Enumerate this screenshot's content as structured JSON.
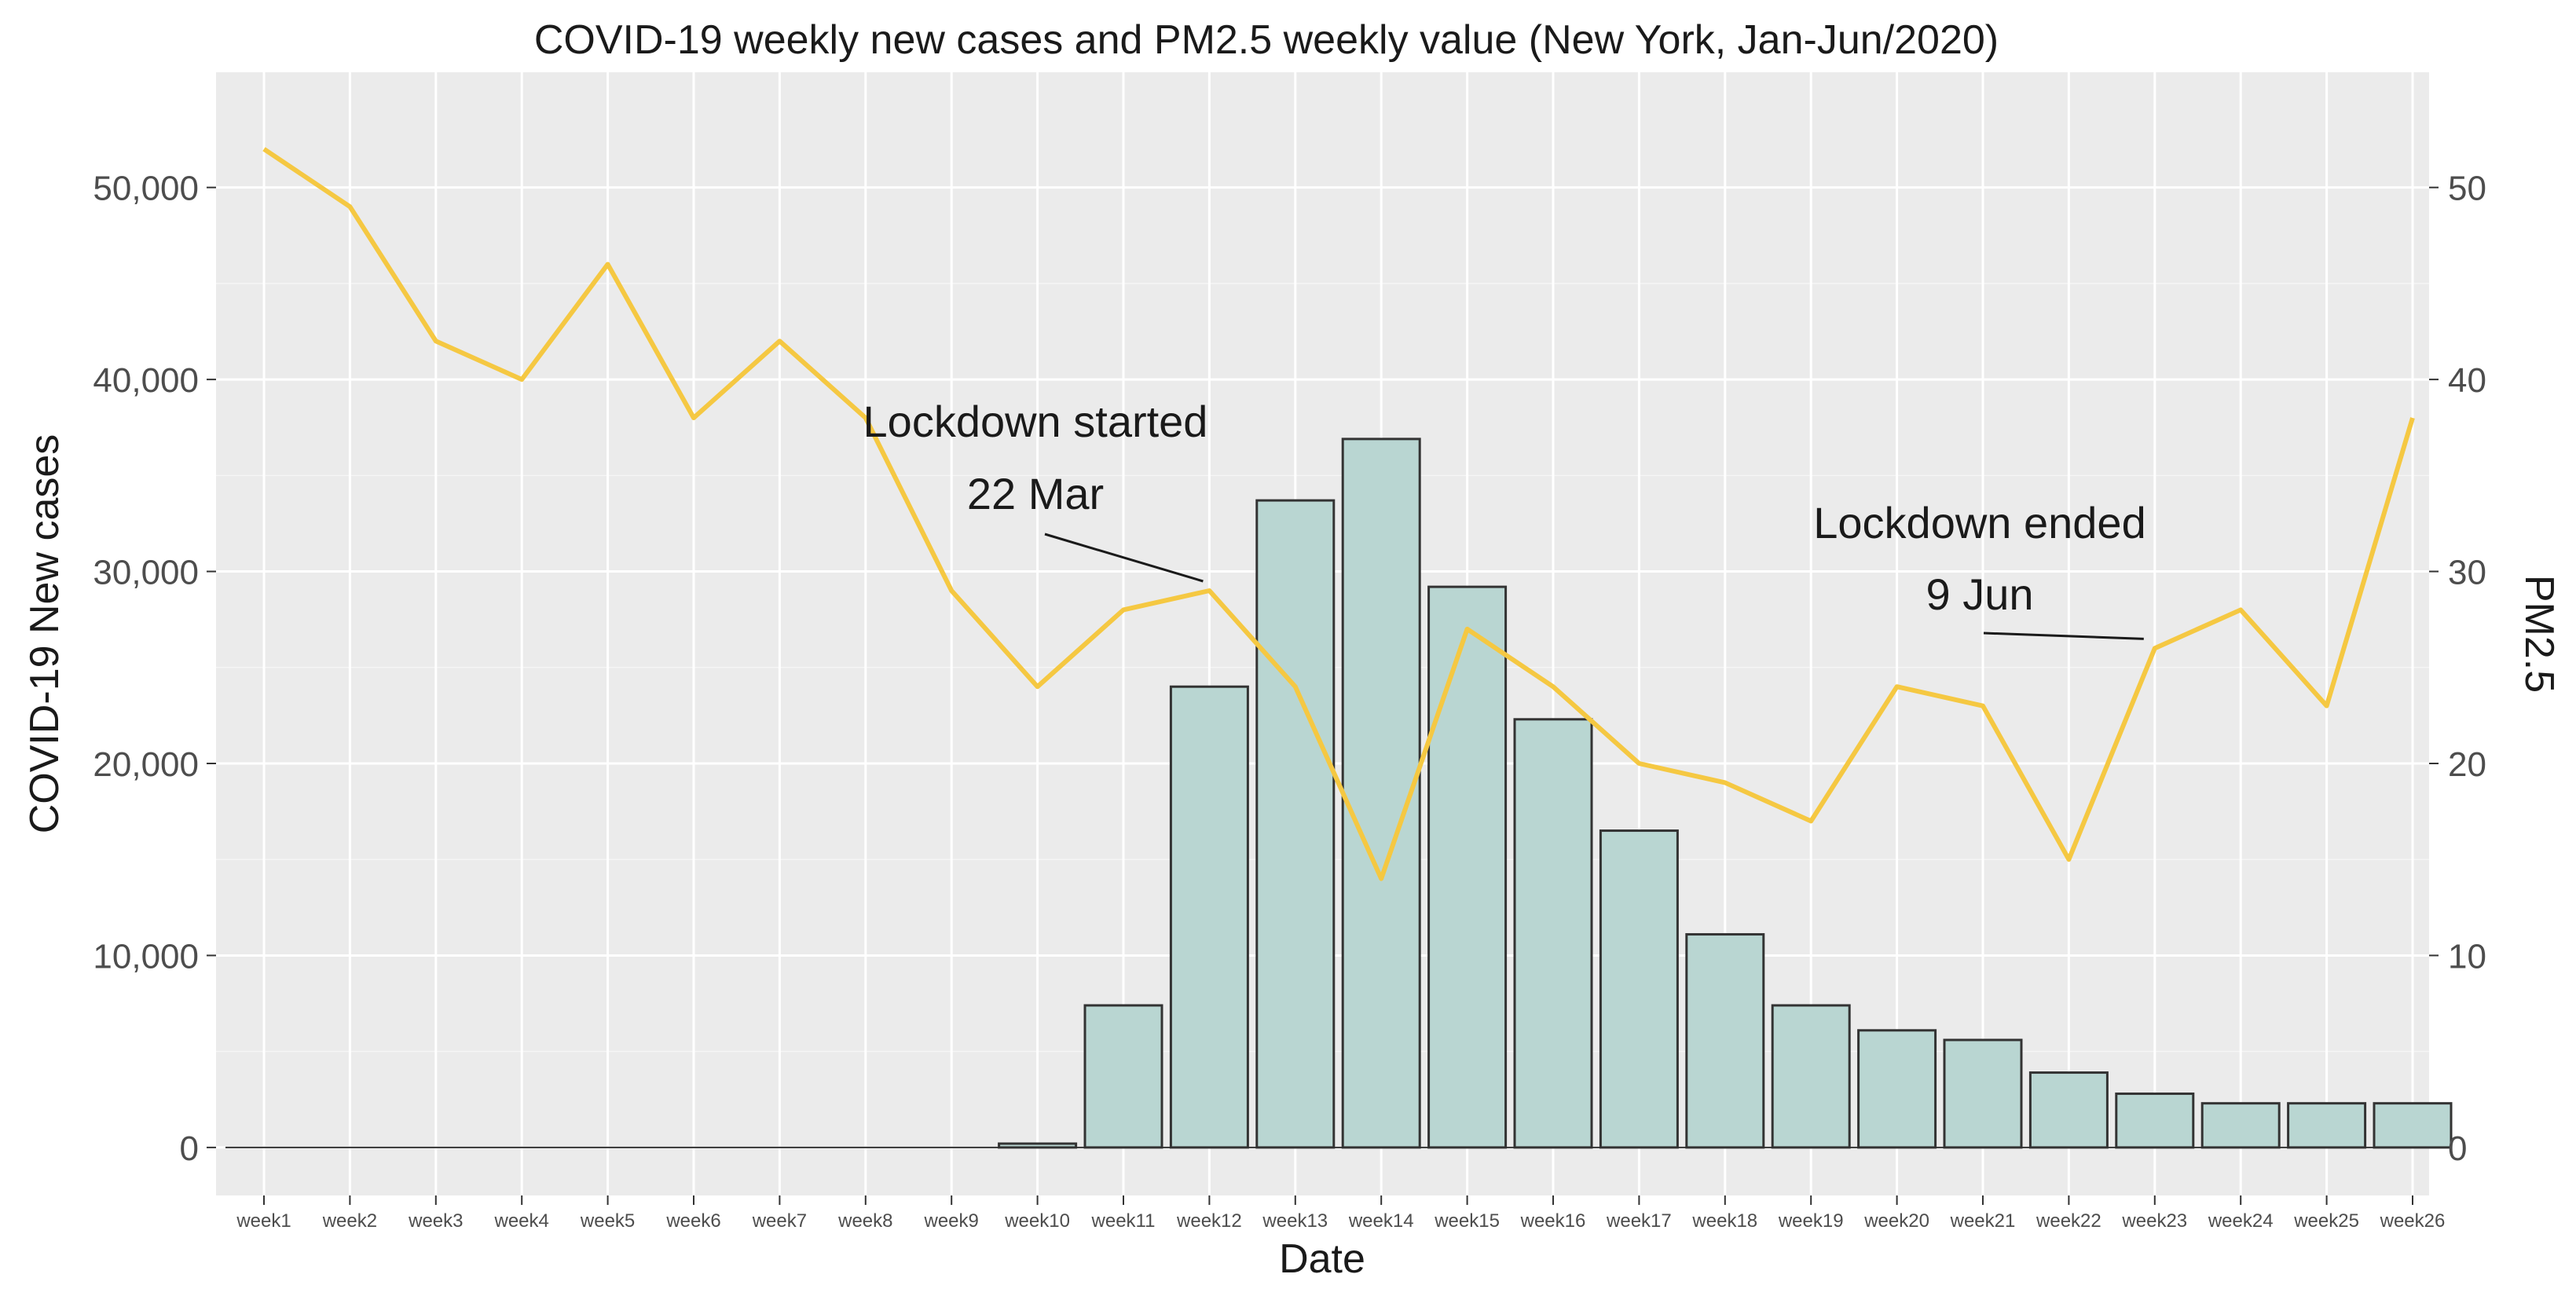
{
  "chart_data": {
    "type": "bar",
    "title": "COVID-19 weekly new cases and PM2.5 weekly value (New York, Jan-Jun/2020)",
    "xlabel": "Date",
    "ylabel": "COVID-19 New cases",
    "ylabel_right": "PM2.5",
    "ylim": [
      -2500,
      56000
    ],
    "ylim_right": [
      -2.5,
      56
    ],
    "grid": true,
    "categories": [
      "week1",
      "week2",
      "week3",
      "week4",
      "week5",
      "week6",
      "week7",
      "week8",
      "week9",
      "week10",
      "week11",
      "week12",
      "week13",
      "week14",
      "week15",
      "week16",
      "week17",
      "week18",
      "week19",
      "week20",
      "week21",
      "week22",
      "week23",
      "week24",
      "week25",
      "week26"
    ],
    "yticks": [
      0,
      10000,
      20000,
      30000,
      40000,
      50000
    ],
    "ytick_labels": [
      "0",
      "10,000",
      "20,000",
      "30,000",
      "40,000",
      "50,000"
    ],
    "yticks_right": [
      0,
      10,
      20,
      30,
      40,
      50
    ],
    "ytick_labels_right": [
      "0",
      "10",
      "20",
      "30",
      "40",
      "50"
    ],
    "series": [
      {
        "name": "COVID-19 New cases",
        "type": "bar",
        "axis": "left",
        "color": "#b9d6d2",
        "values": [
          0,
          0,
          0,
          0,
          0,
          0,
          0,
          0,
          0,
          200,
          7400,
          24000,
          33700,
          36900,
          29200,
          22300,
          16500,
          11100,
          7400,
          6100,
          5600,
          3900,
          2800,
          2300,
          2300,
          2300
        ]
      },
      {
        "name": "PM2.5",
        "type": "line",
        "axis": "right",
        "color": "#f5c842",
        "values": [
          52,
          49,
          42,
          40,
          46,
          38,
          42,
          38,
          29,
          24,
          28,
          29,
          24,
          14,
          27,
          24,
          20,
          19,
          17,
          24,
          23,
          15,
          26,
          28,
          23,
          38
        ]
      }
    ],
    "annotations": [
      {
        "line1": "Lockdown started",
        "line2": "22 Mar",
        "week_index": 11,
        "pm_value": 29
      },
      {
        "line1": "Lockdown ended",
        "line2": "9 Jun",
        "week_index": 22,
        "pm_value": 26
      }
    ]
  }
}
